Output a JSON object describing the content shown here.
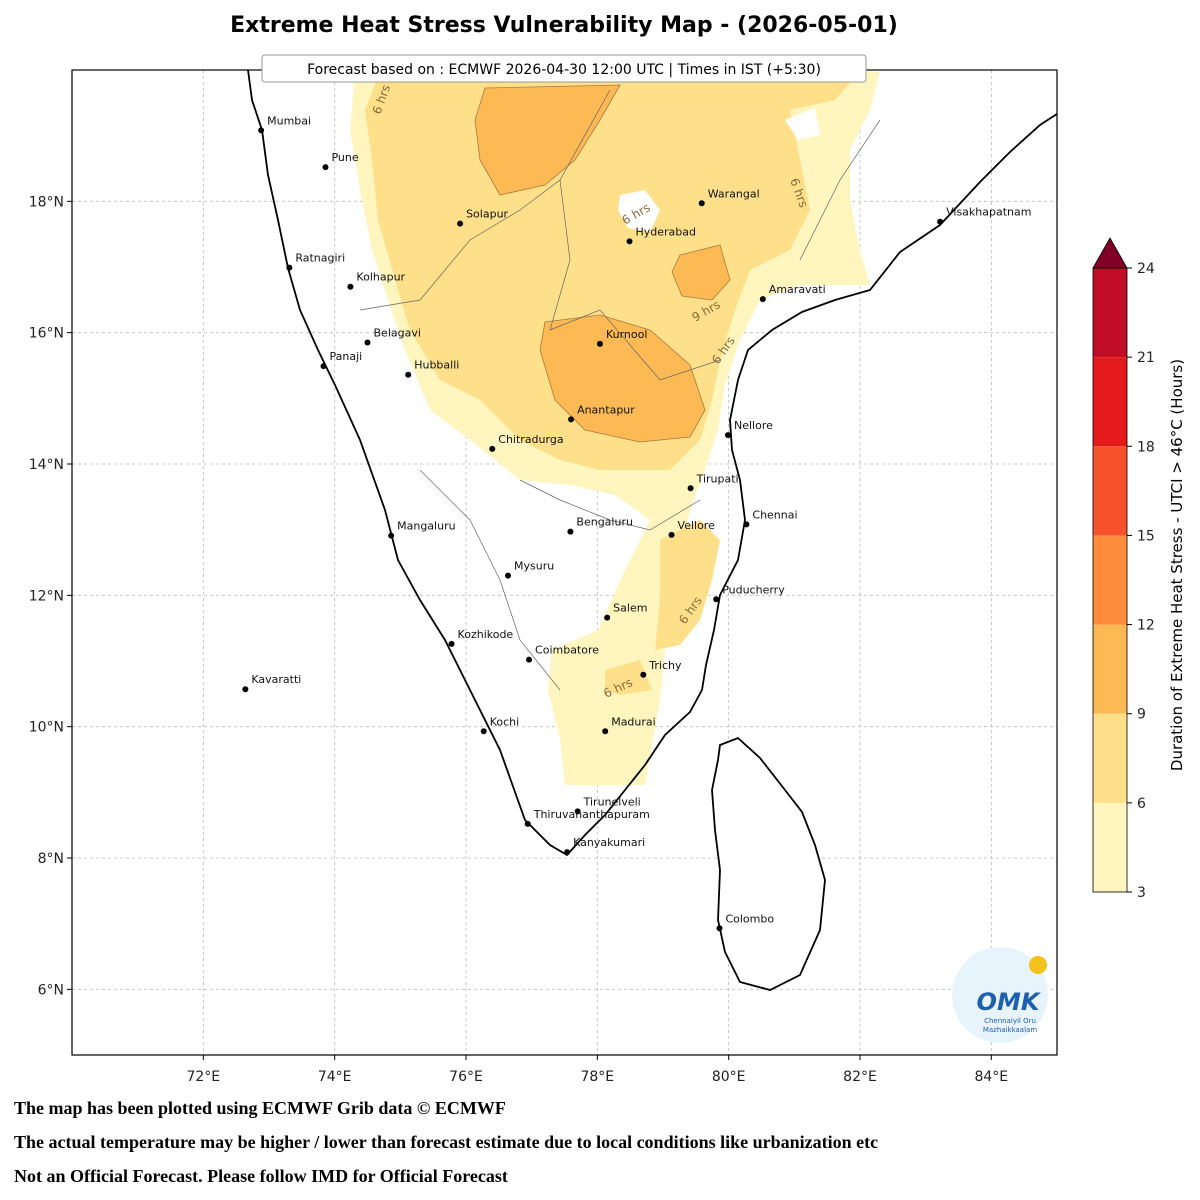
{
  "title": "Extreme Heat Stress Vulnerability Map - (2026-05-01)",
  "subtitle": "Forecast based on : ECMWF 2026-04-30 12:00 UTC | Times in IST (+5:30)",
  "map": {
    "lon_lim": [
      70,
      85
    ],
    "lat_lim": [
      5,
      20
    ],
    "grid": true,
    "lon_ticks": [
      {
        "value": 72,
        "label": "72°E"
      },
      {
        "value": 74,
        "label": "74°E"
      },
      {
        "value": 76,
        "label": "76°E"
      },
      {
        "value": 78,
        "label": "78°E"
      },
      {
        "value": 80,
        "label": "80°E"
      },
      {
        "value": 82,
        "label": "82°E"
      },
      {
        "value": 84,
        "label": "84°E"
      }
    ],
    "lat_ticks": [
      {
        "value": 6,
        "label": "6°N"
      },
      {
        "value": 8,
        "label": "8°N"
      },
      {
        "value": 10,
        "label": "10°N"
      },
      {
        "value": 12,
        "label": "12°N"
      },
      {
        "value": 14,
        "label": "14°N"
      },
      {
        "value": 16,
        "label": "16°N"
      },
      {
        "value": 18,
        "label": "18°N"
      }
    ],
    "cities": [
      {
        "name": "Mumbai",
        "lon": 72.88,
        "lat": 19.08
      },
      {
        "name": "Pune",
        "lon": 73.86,
        "lat": 18.52
      },
      {
        "name": "Solapur",
        "lon": 75.91,
        "lat": 17.66
      },
      {
        "name": "Ratnagiri",
        "lon": 73.31,
        "lat": 16.99
      },
      {
        "name": "Kolhapur",
        "lon": 74.24,
        "lat": 16.7
      },
      {
        "name": "Belagavi",
        "lon": 74.5,
        "lat": 15.85
      },
      {
        "name": "Panaji",
        "lon": 73.83,
        "lat": 15.49
      },
      {
        "name": "Hubballi",
        "lon": 75.12,
        "lat": 15.36
      },
      {
        "name": "Warangal",
        "lon": 79.59,
        "lat": 17.97
      },
      {
        "name": "Hyderabad",
        "lon": 78.49,
        "lat": 17.39
      },
      {
        "name": "Visakhapatnam",
        "lon": 83.22,
        "lat": 17.69
      },
      {
        "name": "Amaravati",
        "lon": 80.52,
        "lat": 16.51
      },
      {
        "name": "Kurnool",
        "lon": 78.04,
        "lat": 15.83
      },
      {
        "name": "Anantapur",
        "lon": 77.6,
        "lat": 14.68
      },
      {
        "name": "Nellore",
        "lon": 79.99,
        "lat": 14.44
      },
      {
        "name": "Chitradurga",
        "lon": 76.4,
        "lat": 14.23
      },
      {
        "name": "Tirupati",
        "lon": 79.42,
        "lat": 13.63
      },
      {
        "name": "Chennai",
        "lon": 80.27,
        "lat": 13.08
      },
      {
        "name": "Bengaluru",
        "lon": 77.59,
        "lat": 12.97
      },
      {
        "name": "Vellore",
        "lon": 79.13,
        "lat": 12.92
      },
      {
        "name": "Mangaluru",
        "lon": 74.86,
        "lat": 12.91
      },
      {
        "name": "Mysuru",
        "lon": 76.64,
        "lat": 12.3
      },
      {
        "name": "Puducherry",
        "lon": 79.81,
        "lat": 11.94
      },
      {
        "name": "Salem",
        "lon": 78.15,
        "lat": 11.66
      },
      {
        "name": "Kozhikode",
        "lon": 75.78,
        "lat": 11.26
      },
      {
        "name": "Coimbatore",
        "lon": 76.96,
        "lat": 11.02
      },
      {
        "name": "Trichy",
        "lon": 78.7,
        "lat": 10.79
      },
      {
        "name": "Kavaratti",
        "lon": 72.64,
        "lat": 10.57
      },
      {
        "name": "Kochi",
        "lon": 76.27,
        "lat": 9.93
      },
      {
        "name": "Madurai",
        "lon": 78.12,
        "lat": 9.93
      },
      {
        "name": "Tirunelveli",
        "lon": 77.7,
        "lat": 8.71
      },
      {
        "name": "Thiruvananthapuram",
        "lon": 76.94,
        "lat": 8.52
      },
      {
        "name": "Kanyakumari",
        "lon": 77.54,
        "lat": 8.09
      },
      {
        "name": "Colombo",
        "lon": 79.86,
        "lat": 6.93
      }
    ],
    "contour_labels": [
      "6 hrs",
      "6 hrs",
      "6 hrs",
      "9 hrs",
      "6 hrs",
      "6 hrs",
      "6 hrs"
    ]
  },
  "colorbar": {
    "label": "Duration of Extreme Heat Stress - UTCI > 46°C (Hours)",
    "bounds": [
      3,
      6,
      9,
      12,
      15,
      18,
      21,
      24
    ],
    "ticks": [
      3,
      6,
      9,
      12,
      15,
      18,
      21,
      24
    ],
    "colors": [
      "#fff5bf",
      "#fedf8a",
      "#fdb954",
      "#fd8c3c",
      "#f6522b",
      "#e31b1c",
      "#c00c25"
    ],
    "extend_color": "#800026"
  },
  "logo": {
    "text": "OMK",
    "line1": "Chennaiyil Oru",
    "line2": "Mazhaikkaalam"
  },
  "footer": [
    "The map has been plotted using ECMWF Grib data © ECMWF",
    "The actual temperature may be higher / lower than forecast estimate due to local conditions like urbanization etc",
    "Not an Official Forecast. Please follow IMD for Official Forecast"
  ]
}
